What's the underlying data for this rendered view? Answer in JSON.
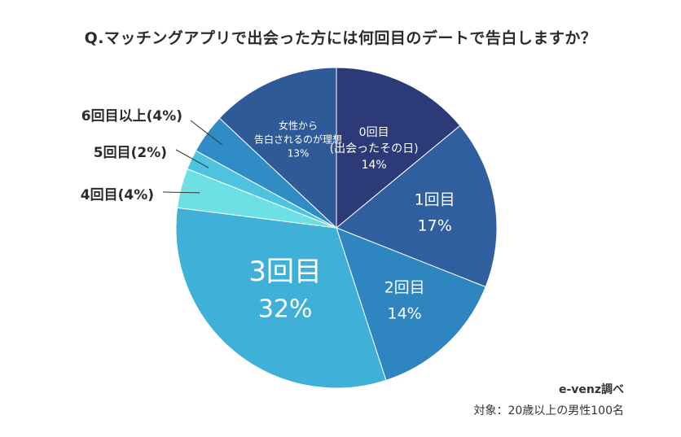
{
  "chart_data": {
    "type": "pie",
    "title": "Q.マッチングアプリで出会った方には何回目のデートで告白しますか？",
    "slices": [
      {
        "label_lines": [
          "0回目",
          "(出会ったその日)"
        ],
        "pct_label": "14%",
        "value": 14,
        "color": "#2c3a78"
      },
      {
        "label_lines": [
          "1回目"
        ],
        "pct_label": "17%",
        "value": 17,
        "color": "#2f5f9e"
      },
      {
        "label_lines": [
          "2回目"
        ],
        "pct_label": "14%",
        "value": 14,
        "color": "#2f85bf"
      },
      {
        "label_lines": [
          "3回目"
        ],
        "pct_label": "32%",
        "value": 32,
        "color": "#3fb1d8"
      },
      {
        "label_lines": [
          "4回目(4%)"
        ],
        "pct_label": "",
        "value": 4,
        "color": "#6ce0e4"
      },
      {
        "label_lines": [
          "5回目(2%)"
        ],
        "pct_label": "",
        "value": 2,
        "color": "#4ec3df"
      },
      {
        "label_lines": [
          "6回目以上(4%)"
        ],
        "pct_label": "",
        "value": 4,
        "color": "#2f8cc4"
      },
      {
        "label_lines": [
          "女性から",
          "告白されるのが理想"
        ],
        "pct_label": "13%",
        "value": 13,
        "color": "#2e5a97"
      }
    ]
  },
  "source": {
    "line1": "e-venz調べ",
    "line2": "対象：20歳以上の男性100名"
  }
}
